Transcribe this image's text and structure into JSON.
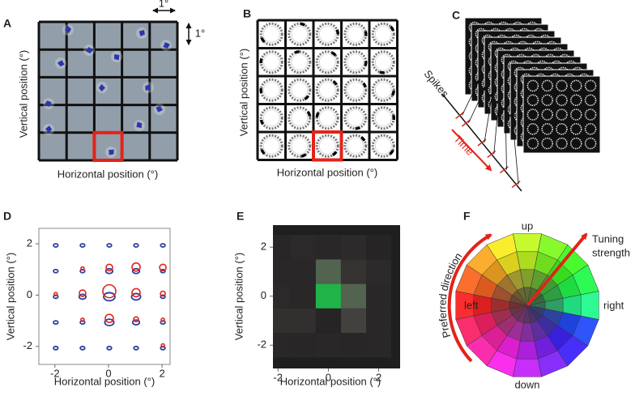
{
  "panels": {
    "a": {
      "label": "A",
      "x_label": "Horizontal position (°)",
      "y_label": "Vertical position (°)",
      "scale_h": "1°",
      "scale_v": "1°"
    },
    "b": {
      "label": "B",
      "x_label": "Horizontal position (°)",
      "y_label": "Vertical position (°)"
    },
    "c": {
      "label": "C",
      "axis_label": "Spikes",
      "time_label": "Time"
    },
    "d": {
      "label": "D",
      "x_label": "Horizontal position (°)",
      "y_label": "Vertical position (°)",
      "xlim": [
        -2.6,
        2.3
      ],
      "ylim": [
        -2.7,
        2.6
      ],
      "xticks": [
        -2,
        0,
        2
      ],
      "yticks": [
        -2,
        0,
        2
      ],
      "blue_sizes": [
        [
          2,
          2,
          2,
          2,
          2
        ],
        [
          2,
          2,
          3,
          3,
          2
        ],
        [
          2,
          3,
          5,
          4,
          2
        ],
        [
          2,
          2,
          4,
          3,
          2
        ],
        [
          2,
          2,
          2,
          2,
          2
        ]
      ],
      "red_sizes": [
        [
          0,
          0,
          0,
          0,
          0
        ],
        [
          0,
          2,
          4,
          5,
          4
        ],
        [
          2,
          4,
          8,
          5,
          3
        ],
        [
          0,
          2,
          5,
          3,
          2
        ],
        [
          0,
          0,
          0,
          0,
          2
        ]
      ]
    },
    "e": {
      "label": "E",
      "x_label": "Horizontal position (°)",
      "y_label": "Vertical position (°)",
      "xlim": [
        -2.2,
        2.85
      ],
      "ylim": [
        -2.95,
        2.9
      ],
      "xticks": [
        -2,
        0,
        2
      ],
      "yticks": [
        -2,
        0,
        2
      ],
      "intensity": [
        [
          0.04,
          0.06,
          0.05,
          0.07,
          0.03
        ],
        [
          0.05,
          0.05,
          0.45,
          0.12,
          0.06
        ],
        [
          0.06,
          0.05,
          1,
          0.45,
          0.05
        ],
        [
          0.1,
          0.1,
          0.03,
          0.22,
          0.05
        ],
        [
          0.05,
          0.04,
          0.05,
          0.04,
          0.05
        ]
      ]
    },
    "f": {
      "label": "F",
      "up": "up",
      "down": "down",
      "left": "left",
      "right": "right",
      "tuning_label": [
        "Tuning",
        "strength"
      ],
      "direction_label": "Preferred direction"
    }
  }
}
